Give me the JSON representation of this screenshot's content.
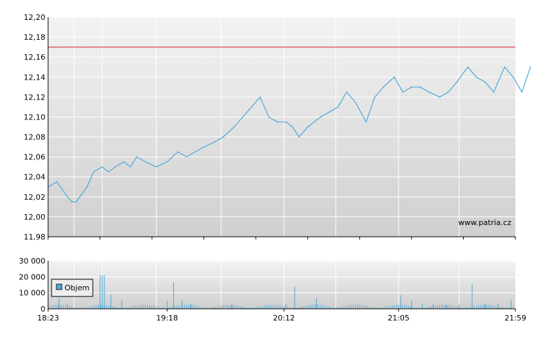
{
  "chart_data": [
    {
      "type": "line",
      "title": "",
      "xlabel": "",
      "ylabel": "",
      "ylim": [
        11.98,
        12.2
      ],
      "y_ticks": [
        "11,98",
        "12,00",
        "12,02",
        "12,04",
        "12,06",
        "12,08",
        "12,10",
        "12,12",
        "12,14",
        "12,16",
        "12,18",
        "12,20"
      ],
      "reference_line": {
        "value": 12.17,
        "color": "#e06060"
      },
      "line_color": "#4aa8d8",
      "grid": true,
      "watermark": "www.patria.cz",
      "series": [
        {
          "x_minutes": [
            0,
            4,
            9,
            11,
            13,
            18,
            21,
            25,
            28,
            31,
            35,
            38,
            41,
            45,
            50,
            55,
            60,
            64,
            68,
            72,
            77,
            81,
            86,
            90,
            94,
            98,
            102,
            106,
            110,
            113,
            116,
            120,
            123,
            126,
            130,
            134,
            138,
            142,
            147,
            151,
            155,
            160,
            164,
            168,
            172,
            176,
            181,
            185,
            189,
            194,
            198,
            202,
            206,
            211,
            215,
            219,
            223
          ],
          "values": [
            12.03,
            12.035,
            12.02,
            12.015,
            12.015,
            12.03,
            12.045,
            12.05,
            12.045,
            12.05,
            12.055,
            12.05,
            12.06,
            12.055,
            12.05,
            12.055,
            12.065,
            12.06,
            12.065,
            12.07,
            12.075,
            12.08,
            12.09,
            12.1,
            12.11,
            12.12,
            12.1,
            12.095,
            12.095,
            12.09,
            12.08,
            12.09,
            12.095,
            12.1,
            12.105,
            12.11,
            12.125,
            12.115,
            12.095,
            12.12,
            12.13,
            12.14,
            12.125,
            12.13,
            12.13,
            12.125,
            12.12,
            12.125,
            12.135,
            12.15,
            12.14,
            12.135,
            12.125,
            12.15,
            12.14,
            12.125,
            12.15
          ]
        }
      ]
    },
    {
      "type": "bar",
      "title": "",
      "xlabel": "",
      "ylabel": "",
      "ylim": [
        0,
        30000
      ],
      "y_ticks": [
        "0",
        "10 000",
        "20 000",
        "30 000"
      ],
      "x_ticks": [
        {
          "minute": 0,
          "label": "18:23"
        },
        {
          "minute": 55,
          "label": "19:18"
        },
        {
          "minute": 109,
          "label": "20:12"
        },
        {
          "minute": 162,
          "label": "21:05"
        },
        {
          "minute": 216,
          "label": "21:59"
        }
      ],
      "bar_color": "#4aa8d8",
      "legend": {
        "position": "top-left",
        "entries": [
          "Objem"
        ]
      },
      "grid": true,
      "series": [
        {
          "name": "Objem",
          "x_minutes": [
            5,
            9,
            24,
            25,
            26,
            29,
            34,
            55,
            58,
            62,
            66,
            85,
            110,
            114,
            124,
            163,
            168,
            173,
            178,
            184,
            190,
            196,
            202,
            208,
            214
          ],
          "values": [
            6500,
            3500,
            21000,
            21000,
            21000,
            9000,
            5000,
            5000,
            16500,
            5000,
            3000,
            2500,
            3000,
            14000,
            6500,
            8500,
            5000,
            3000,
            3000,
            2500,
            2500,
            15500,
            3000,
            3000,
            5500
          ]
        }
      ]
    }
  ]
}
